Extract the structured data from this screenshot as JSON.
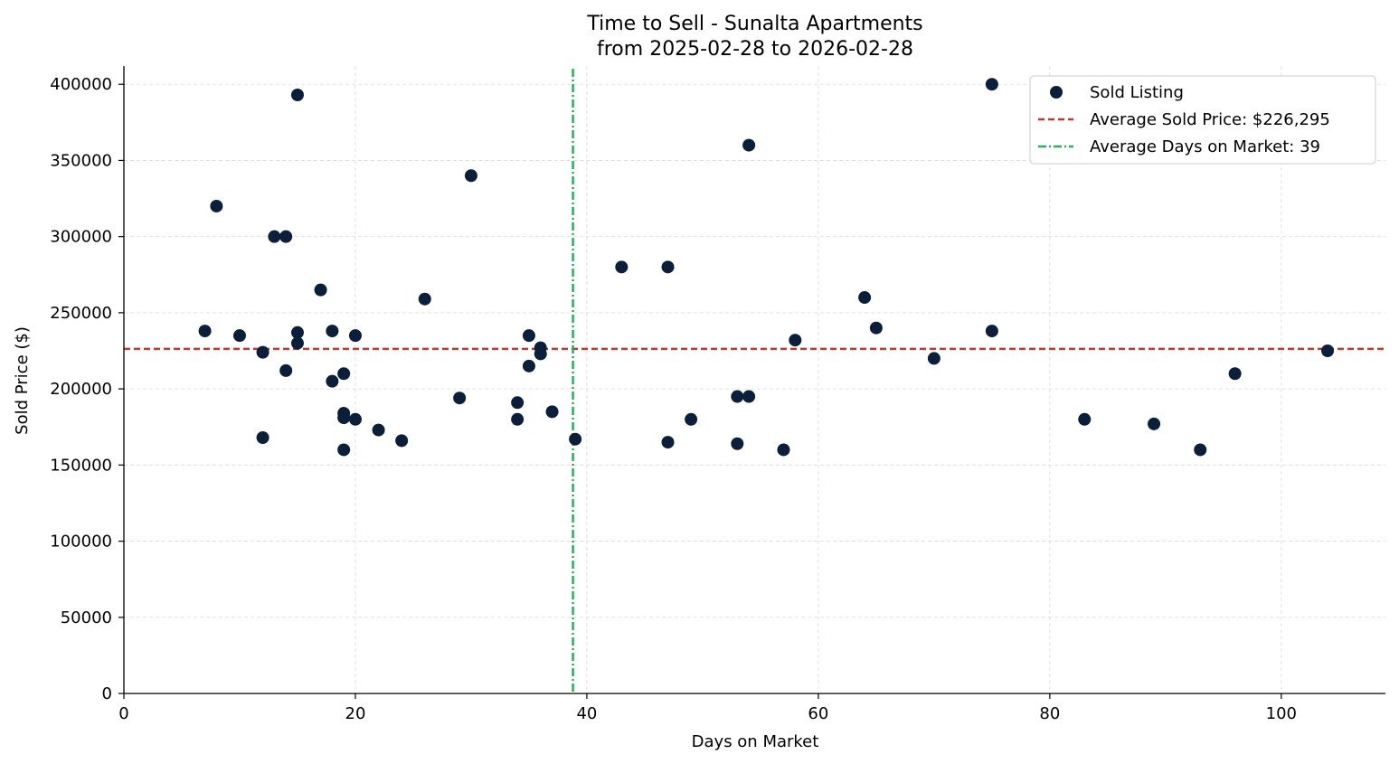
{
  "chart_data": {
    "type": "scatter",
    "title": "Time to Sell - Sunalta Apartments",
    "subtitle": "from 2025-02-28 to 2026-02-28",
    "xlabel": "Days on Market",
    "ylabel": "Sold Price ($)",
    "xlim": [
      0,
      109
    ],
    "ylim": [
      0,
      412000
    ],
    "xticks": [
      0,
      20,
      40,
      60,
      80,
      100
    ],
    "yticks": [
      0,
      50000,
      100000,
      150000,
      200000,
      250000,
      300000,
      350000,
      400000
    ],
    "grid": true,
    "legend_position": "top-right",
    "colors": {
      "points": "#0b1f3a",
      "avg_price": "#c0392b",
      "avg_days": "#27ae60"
    },
    "series": [
      {
        "name": "Sold Listing",
        "points": [
          [
            7,
            238000
          ],
          [
            8,
            320000
          ],
          [
            10,
            235000
          ],
          [
            12,
            224000
          ],
          [
            12,
            168000
          ],
          [
            13,
            300000
          ],
          [
            14,
            300000
          ],
          [
            14,
            212000
          ],
          [
            15,
            393000
          ],
          [
            15,
            237000
          ],
          [
            15,
            230000
          ],
          [
            17,
            265000
          ],
          [
            18,
            238000
          ],
          [
            18,
            205000
          ],
          [
            19,
            210000
          ],
          [
            19,
            184000
          ],
          [
            19,
            181000
          ],
          [
            19,
            160000
          ],
          [
            20,
            235000
          ],
          [
            20,
            180000
          ],
          [
            22,
            173000
          ],
          [
            24,
            166000
          ],
          [
            26,
            259000
          ],
          [
            29,
            194000
          ],
          [
            30,
            340000
          ],
          [
            34,
            191000
          ],
          [
            34,
            180000
          ],
          [
            35,
            235000
          ],
          [
            35,
            215000
          ],
          [
            36,
            227000
          ],
          [
            36,
            223000
          ],
          [
            37,
            185000
          ],
          [
            39,
            167000
          ],
          [
            43,
            280000
          ],
          [
            47,
            280000
          ],
          [
            47,
            165000
          ],
          [
            49,
            180000
          ],
          [
            53,
            195000
          ],
          [
            53,
            164000
          ],
          [
            54,
            360000
          ],
          [
            54,
            195000
          ],
          [
            57,
            160000
          ],
          [
            58,
            232000
          ],
          [
            64,
            260000
          ],
          [
            65,
            240000
          ],
          [
            70,
            220000
          ],
          [
            75,
            400000
          ],
          [
            75,
            238000
          ],
          [
            83,
            180000
          ],
          [
            89,
            177000
          ],
          [
            93,
            160000
          ],
          [
            96,
            210000
          ],
          [
            104,
            225000
          ]
        ]
      }
    ],
    "reference_lines": {
      "avg_price": {
        "name": "Average Sold Price: $226,295",
        "value": 226295
      },
      "avg_days": {
        "name": "Average Days on Market: 39",
        "value": 38.8
      }
    }
  }
}
